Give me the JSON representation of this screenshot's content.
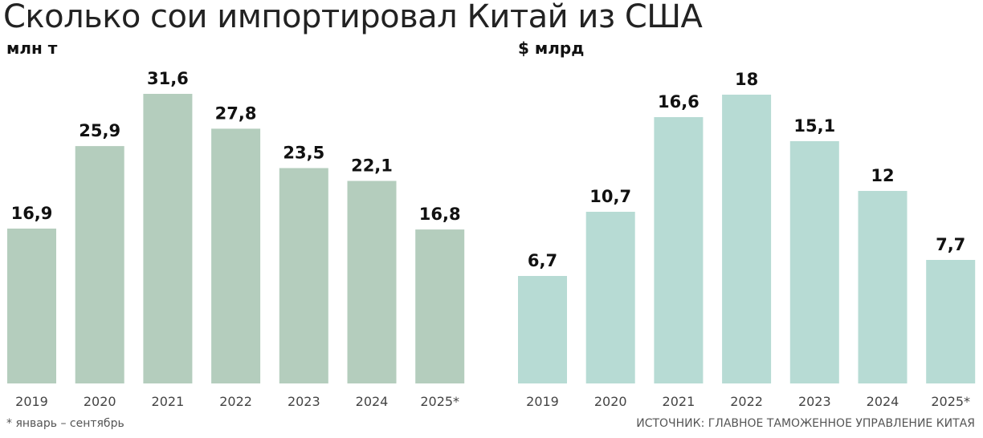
{
  "title": "Сколько сои импортировал Китай из США",
  "footnote": "* январь – сентябрь",
  "source": "ИСТОЧНИК: ГЛАВНОЕ ТАМОЖЕННОЕ УПРАВЛЕНИЕ КИТАЯ",
  "chart_data": [
    {
      "type": "bar",
      "title": "",
      "ylabel": "млн т",
      "xlabel": "",
      "categories": [
        "2019",
        "2020",
        "2021",
        "2022",
        "2023",
        "2024",
        "2025*"
      ],
      "values": [
        16.9,
        25.9,
        31.6,
        27.8,
        23.5,
        22.1,
        16.8
      ],
      "value_labels": [
        "16,9",
        "25,9",
        "31,6",
        "27,8",
        "23,5",
        "22,1",
        "16,8"
      ],
      "ylim": [
        0,
        31.6
      ],
      "grid": false,
      "color": "#b4cdbd"
    },
    {
      "type": "bar",
      "title": "",
      "ylabel": "$ млрд",
      "xlabel": "",
      "categories": [
        "2019",
        "2020",
        "2021",
        "2022",
        "2023",
        "2024",
        "2025*"
      ],
      "values": [
        6.7,
        10.7,
        16.6,
        18,
        15.1,
        12,
        7.7
      ],
      "value_labels": [
        "6,7",
        "10,7",
        "16,6",
        "18",
        "15,1",
        "12",
        "7,7"
      ],
      "ylim": [
        0,
        18
      ],
      "grid": false,
      "color": "#b7dbd4"
    }
  ]
}
